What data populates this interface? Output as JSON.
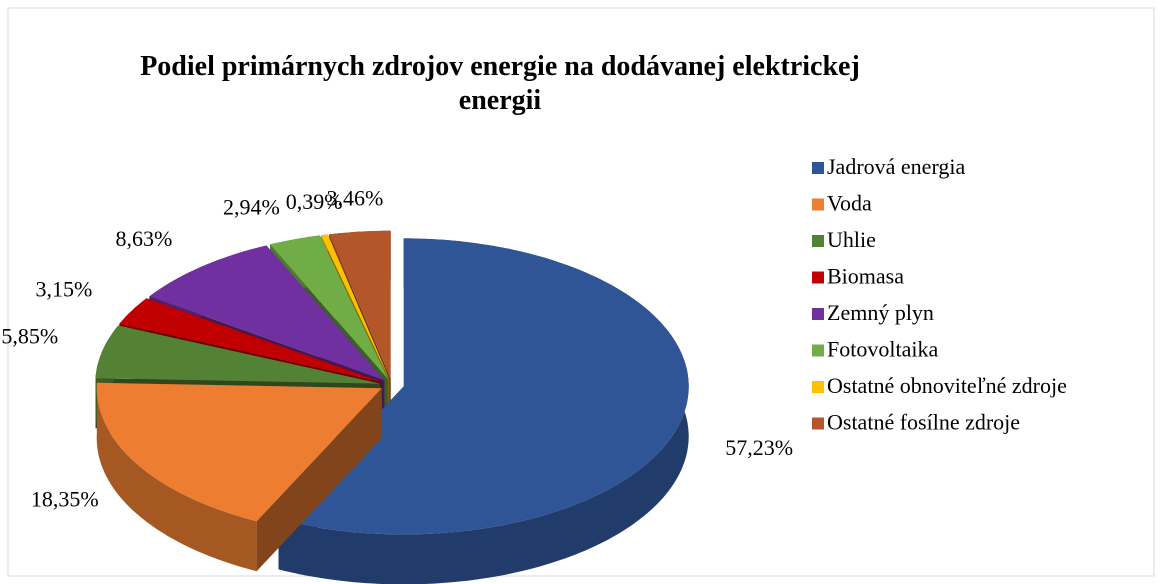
{
  "chart_data": {
    "type": "pie",
    "title": "Podiel primárnych zdrojov energie na dodávanej elektrickej energii",
    "categories": [
      "Jadrová energia",
      "Voda",
      "Uhlie",
      "Biomasa",
      "Zemný plyn",
      "Fotovoltaika",
      "Ostatné obnoviteľné zdroje",
      "Ostatné fosílne zdroje"
    ],
    "values": [
      57.23,
      18.35,
      5.85,
      3.15,
      8.63,
      2.94,
      0.39,
      3.46
    ],
    "value_labels": [
      "57,23%",
      "18,35%",
      "5,85%",
      "3,15%",
      "8,63%",
      "2,94%",
      "0,39%",
      "3,46%"
    ],
    "colors": [
      "#2f5597",
      "#ed7d31",
      "#548235",
      "#c00000",
      "#7030a0",
      "#70ad47",
      "#ffc000",
      "#b3562a"
    ],
    "legend": "right"
  }
}
